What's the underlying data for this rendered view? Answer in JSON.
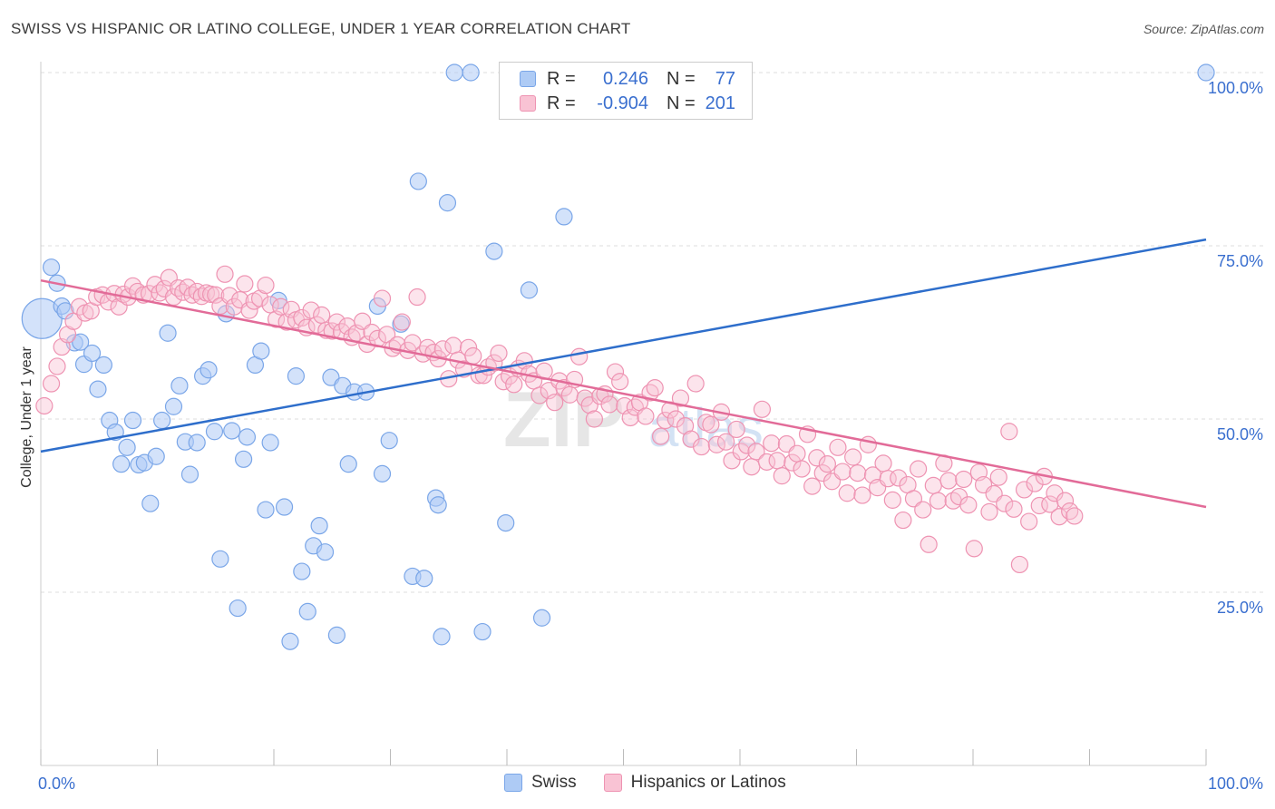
{
  "title": "SWISS VS HISPANIC OR LATINO COLLEGE, UNDER 1 YEAR CORRELATION CHART",
  "source": "Source: ZipAtlas.com",
  "watermark": "ZIPatlas",
  "legend": {
    "r_label": "R =",
    "n_label": "N =",
    "series": [
      {
        "name": "Swiss",
        "r": "0.246",
        "n": "77",
        "fill": "#aecbf5",
        "stroke": "#7aa6e8"
      },
      {
        "name": "Hispanics or Latinos",
        "r": "-0.904",
        "n": "201",
        "fill": "#f9c3d4",
        "stroke": "#ee93b2"
      }
    ]
  },
  "chart_data": {
    "type": "scatter",
    "xlabel": "",
    "ylabel": "College, Under 1 year",
    "xlim": [
      0,
      100
    ],
    "ylim": [
      0,
      100
    ],
    "x_tick_labels": [
      "0.0%",
      "100.0%"
    ],
    "y_tick_labels": [
      "100.0%",
      "75.0%",
      "50.0%",
      "25.0%"
    ],
    "y_ticks": [
      100,
      75,
      50,
      25
    ],
    "grid": "horizontal dashed",
    "series": [
      {
        "name": "Swiss",
        "color": "#7aa6e8",
        "line_color": "#2e6ecb",
        "trend": {
          "x": [
            0,
            100
          ],
          "y": [
            45.3,
            75.9
          ]
        },
        "points": [
          [
            0.1,
            64.5
          ],
          [
            0.9,
            71.9
          ],
          [
            1.4,
            69.6
          ],
          [
            1.8,
            66.3
          ],
          [
            2.1,
            65.6
          ],
          [
            2.9,
            61.0
          ],
          [
            3.4,
            61.1
          ],
          [
            3.7,
            57.9
          ],
          [
            4.4,
            59.5
          ],
          [
            4.9,
            54.3
          ],
          [
            5.4,
            57.8
          ],
          [
            5.9,
            49.8
          ],
          [
            6.4,
            48.1
          ],
          [
            6.9,
            43.5
          ],
          [
            7.4,
            45.9
          ],
          [
            7.9,
            49.8
          ],
          [
            8.4,
            43.4
          ],
          [
            8.9,
            43.7
          ],
          [
            9.4,
            37.8
          ],
          [
            9.9,
            44.6
          ],
          [
            10.4,
            49.8
          ],
          [
            10.9,
            62.4
          ],
          [
            11.4,
            51.8
          ],
          [
            11.9,
            54.8
          ],
          [
            12.4,
            46.7
          ],
          [
            12.8,
            42.0
          ],
          [
            13.4,
            46.6
          ],
          [
            13.9,
            56.2
          ],
          [
            14.4,
            57.1
          ],
          [
            14.9,
            48.2
          ],
          [
            15.4,
            29.8
          ],
          [
            15.9,
            65.2
          ],
          [
            16.4,
            48.3
          ],
          [
            16.9,
            22.7
          ],
          [
            17.4,
            44.2
          ],
          [
            17.7,
            47.4
          ],
          [
            18.4,
            57.8
          ],
          [
            18.9,
            59.8
          ],
          [
            19.3,
            36.9
          ],
          [
            19.7,
            46.6
          ],
          [
            20.4,
            67.1
          ],
          [
            20.9,
            37.3
          ],
          [
            21.4,
            17.9
          ],
          [
            21.9,
            56.2
          ],
          [
            22.4,
            28.0
          ],
          [
            22.9,
            22.2
          ],
          [
            23.4,
            31.7
          ],
          [
            23.9,
            34.6
          ],
          [
            24.4,
            30.8
          ],
          [
            24.9,
            56.0
          ],
          [
            25.4,
            18.8
          ],
          [
            25.9,
            54.8
          ],
          [
            26.4,
            43.5
          ],
          [
            26.9,
            53.9
          ],
          [
            27.9,
            53.9
          ],
          [
            28.9,
            66.3
          ],
          [
            29.3,
            42.1
          ],
          [
            29.9,
            46.9
          ],
          [
            30.9,
            63.7
          ],
          [
            31.9,
            27.3
          ],
          [
            32.4,
            84.3
          ],
          [
            32.9,
            27.0
          ],
          [
            33.9,
            38.6
          ],
          [
            34.1,
            37.6
          ],
          [
            34.4,
            18.6
          ],
          [
            34.9,
            81.2
          ],
          [
            35.5,
            100.0
          ],
          [
            36.9,
            100.0
          ],
          [
            37.9,
            19.3
          ],
          [
            38.9,
            74.2
          ],
          [
            39.9,
            35.0
          ],
          [
            40.9,
            100.0
          ],
          [
            41.9,
            68.6
          ],
          [
            43.0,
            21.3
          ],
          [
            44.9,
            79.2
          ],
          [
            46.9,
            100.0
          ],
          [
            100.0,
            100.0
          ]
        ]
      },
      {
        "name": "Hispanics or Latinos",
        "color": "#ee93b2",
        "line_color": "#e26b98",
        "trend": {
          "x": [
            0,
            100
          ],
          "y": [
            70.0,
            37.3
          ]
        },
        "points": [
          [
            0.3,
            51.9
          ],
          [
            0.9,
            55.1
          ],
          [
            1.4,
            57.6
          ],
          [
            1.8,
            60.4
          ],
          [
            2.3,
            62.2
          ],
          [
            2.8,
            64.1
          ],
          [
            3.3,
            66.2
          ],
          [
            3.8,
            65.3
          ],
          [
            4.3,
            65.6
          ],
          [
            4.8,
            67.6
          ],
          [
            5.3,
            67.9
          ],
          [
            5.8,
            66.9
          ],
          [
            6.3,
            68.1
          ],
          [
            6.7,
            66.2
          ],
          [
            7.1,
            68.0
          ],
          [
            7.5,
            67.6
          ],
          [
            7.9,
            69.2
          ],
          [
            8.3,
            68.4
          ],
          [
            8.8,
            67.9
          ],
          [
            9.3,
            68.1
          ],
          [
            9.8,
            69.4
          ],
          [
            10.2,
            68.2
          ],
          [
            10.6,
            68.8
          ],
          [
            11.0,
            70.4
          ],
          [
            11.4,
            67.6
          ],
          [
            11.8,
            68.9
          ],
          [
            12.2,
            68.3
          ],
          [
            12.6,
            69.0
          ],
          [
            13.0,
            67.9
          ],
          [
            13.4,
            68.4
          ],
          [
            13.8,
            67.7
          ],
          [
            14.2,
            68.2
          ],
          [
            14.6,
            68.0
          ],
          [
            15.0,
            67.9
          ],
          [
            15.4,
            66.3
          ],
          [
            15.8,
            70.9
          ],
          [
            16.2,
            67.8
          ],
          [
            16.6,
            66.2
          ],
          [
            17.1,
            67.2
          ],
          [
            17.5,
            69.5
          ],
          [
            17.9,
            65.7
          ],
          [
            18.3,
            67.0
          ],
          [
            18.8,
            67.4
          ],
          [
            19.3,
            69.3
          ],
          [
            19.7,
            66.5
          ],
          [
            20.2,
            64.4
          ],
          [
            20.6,
            66.2
          ],
          [
            21.1,
            64.0
          ],
          [
            21.5,
            65.8
          ],
          [
            21.9,
            64.3
          ],
          [
            22.4,
            64.6
          ],
          [
            22.8,
            63.2
          ],
          [
            23.2,
            65.7
          ],
          [
            23.7,
            63.6
          ],
          [
            24.1,
            65.0
          ],
          [
            24.5,
            62.8
          ],
          [
            25.0,
            62.7
          ],
          [
            25.4,
            64.0
          ],
          [
            25.8,
            62.6
          ],
          [
            26.3,
            63.4
          ],
          [
            26.7,
            61.8
          ],
          [
            27.1,
            62.4
          ],
          [
            27.6,
            64.1
          ],
          [
            28.0,
            60.8
          ],
          [
            28.4,
            62.5
          ],
          [
            28.9,
            61.6
          ],
          [
            29.3,
            67.4
          ],
          [
            29.7,
            62.2
          ],
          [
            30.2,
            60.2
          ],
          [
            30.6,
            60.7
          ],
          [
            31.0,
            64.0
          ],
          [
            31.5,
            59.9
          ],
          [
            31.9,
            61.0
          ],
          [
            32.3,
            67.6
          ],
          [
            32.8,
            59.4
          ],
          [
            33.2,
            60.3
          ],
          [
            33.7,
            59.6
          ],
          [
            34.1,
            58.7
          ],
          [
            34.5,
            60.1
          ],
          [
            35.0,
            55.8
          ],
          [
            35.4,
            60.6
          ],
          [
            35.8,
            58.5
          ],
          [
            36.3,
            57.2
          ],
          [
            36.7,
            60.3
          ],
          [
            37.1,
            59.1
          ],
          [
            37.6,
            56.3
          ],
          [
            38.0,
            56.3
          ],
          [
            38.4,
            57.5
          ],
          [
            38.9,
            58.1
          ],
          [
            39.3,
            59.5
          ],
          [
            39.7,
            55.4
          ],
          [
            40.2,
            56.2
          ],
          [
            40.6,
            55.0
          ],
          [
            41.0,
            57.3
          ],
          [
            41.5,
            58.4
          ],
          [
            41.9,
            56.5
          ],
          [
            42.3,
            55.5
          ],
          [
            42.8,
            53.4
          ],
          [
            43.2,
            56.9
          ],
          [
            43.6,
            54.1
          ],
          [
            44.1,
            52.4
          ],
          [
            44.5,
            55.5
          ],
          [
            44.9,
            54.5
          ],
          [
            45.4,
            53.5
          ],
          [
            45.8,
            55.7
          ],
          [
            46.2,
            59.0
          ],
          [
            46.7,
            53.0
          ],
          [
            47.1,
            52.0
          ],
          [
            47.5,
            50.0
          ],
          [
            48.0,
            53.3
          ],
          [
            48.4,
            53.6
          ],
          [
            48.8,
            52.1
          ],
          [
            49.3,
            56.8
          ],
          [
            49.7,
            55.4
          ],
          [
            50.1,
            51.9
          ],
          [
            50.6,
            50.2
          ],
          [
            51.0,
            51.7
          ],
          [
            51.4,
            52.4
          ],
          [
            51.9,
            50.4
          ],
          [
            52.3,
            53.8
          ],
          [
            52.7,
            54.5
          ],
          [
            53.2,
            47.5
          ],
          [
            53.6,
            49.8
          ],
          [
            54.0,
            51.3
          ],
          [
            54.5,
            50.0
          ],
          [
            54.9,
            53.0
          ],
          [
            55.3,
            49.0
          ],
          [
            55.8,
            47.1
          ],
          [
            56.2,
            55.1
          ],
          [
            56.7,
            46.0
          ],
          [
            57.1,
            49.5
          ],
          [
            57.5,
            49.2
          ],
          [
            58.0,
            46.3
          ],
          [
            58.4,
            51.0
          ],
          [
            58.8,
            46.7
          ],
          [
            59.3,
            44.0
          ],
          [
            59.7,
            48.5
          ],
          [
            60.1,
            45.3
          ],
          [
            60.6,
            46.2
          ],
          [
            61.0,
            43.1
          ],
          [
            61.4,
            45.3
          ],
          [
            61.9,
            51.4
          ],
          [
            62.3,
            43.8
          ],
          [
            62.7,
            46.5
          ],
          [
            63.2,
            44.0
          ],
          [
            63.6,
            41.8
          ],
          [
            64.0,
            46.4
          ],
          [
            64.5,
            43.7
          ],
          [
            64.9,
            45.0
          ],
          [
            65.3,
            42.8
          ],
          [
            65.8,
            47.8
          ],
          [
            66.2,
            40.3
          ],
          [
            66.6,
            44.4
          ],
          [
            67.1,
            42.2
          ],
          [
            67.5,
            43.5
          ],
          [
            67.9,
            41.0
          ],
          [
            68.4,
            45.9
          ],
          [
            68.8,
            42.4
          ],
          [
            69.2,
            39.3
          ],
          [
            69.7,
            44.5
          ],
          [
            70.1,
            42.2
          ],
          [
            70.5,
            39.0
          ],
          [
            71.0,
            46.3
          ],
          [
            71.4,
            41.9
          ],
          [
            71.8,
            40.1
          ],
          [
            72.3,
            43.6
          ],
          [
            72.7,
            41.4
          ],
          [
            73.1,
            38.3
          ],
          [
            73.6,
            41.5
          ],
          [
            74.0,
            35.4
          ],
          [
            74.4,
            40.5
          ],
          [
            74.9,
            38.5
          ],
          [
            75.3,
            42.8
          ],
          [
            75.7,
            36.9
          ],
          [
            76.2,
            31.9
          ],
          [
            76.6,
            40.4
          ],
          [
            77.0,
            38.2
          ],
          [
            77.5,
            43.6
          ],
          [
            77.9,
            41.1
          ],
          [
            78.3,
            38.2
          ],
          [
            78.8,
            38.8
          ],
          [
            79.2,
            41.3
          ],
          [
            79.6,
            37.6
          ],
          [
            80.1,
            31.3
          ],
          [
            80.5,
            42.3
          ],
          [
            80.9,
            40.5
          ],
          [
            81.4,
            36.6
          ],
          [
            81.8,
            39.2
          ],
          [
            82.2,
            41.6
          ],
          [
            82.7,
            37.8
          ],
          [
            83.1,
            48.2
          ],
          [
            83.5,
            37.0
          ],
          [
            84.0,
            29.0
          ],
          [
            84.4,
            39.8
          ],
          [
            84.8,
            35.2
          ],
          [
            85.3,
            40.7
          ],
          [
            85.7,
            37.5
          ],
          [
            86.1,
            41.7
          ],
          [
            86.6,
            37.7
          ],
          [
            87.0,
            39.3
          ],
          [
            87.4,
            35.9
          ],
          [
            87.9,
            38.2
          ],
          [
            88.3,
            36.7
          ],
          [
            88.7,
            36.0
          ]
        ]
      }
    ]
  }
}
